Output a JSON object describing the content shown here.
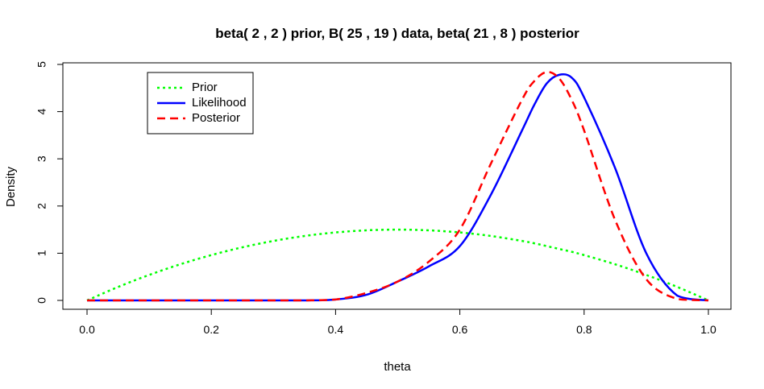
{
  "chart_data": {
    "type": "line",
    "title": "beta( 2 , 2 ) prior, B( 25 , 19 ) data, beta( 21 , 8 ) posterior",
    "xlabel": "theta",
    "ylabel": "Density",
    "xlim": [
      0,
      1
    ],
    "ylim": [
      0,
      5
    ],
    "x_ticks": [
      "0.0",
      "0.2",
      "0.4",
      "0.6",
      "0.8",
      "1.0"
    ],
    "y_ticks": [
      "0",
      "1",
      "2",
      "3",
      "4",
      "5"
    ],
    "grid": false,
    "legend_position": "top-left",
    "x": [
      0.0,
      0.05,
      0.1,
      0.15,
      0.2,
      0.25,
      0.3,
      0.35,
      0.4,
      0.45,
      0.5,
      0.55,
      0.6,
      0.65,
      0.7,
      0.72,
      0.74,
      0.76,
      0.78,
      0.8,
      0.85,
      0.9,
      0.95,
      1.0
    ],
    "series": [
      {
        "name": "Prior",
        "color": "#00ff00",
        "style": "dotted",
        "values": [
          0.0,
          0.285,
          0.54,
          0.765,
          0.96,
          1.125,
          1.26,
          1.365,
          1.44,
          1.485,
          1.5,
          1.485,
          1.44,
          1.365,
          1.26,
          1.21,
          1.15,
          1.09,
          1.03,
          0.96,
          0.765,
          0.54,
          0.285,
          0.0
        ]
      },
      {
        "name": "Likelihood",
        "color": "#0000ff",
        "style": "solid",
        "values": [
          0.0,
          0.0,
          0.0,
          0.0,
          0.0,
          0.0,
          0.0,
          0.0,
          0.02,
          0.12,
          0.4,
          0.72,
          1.15,
          2.24,
          3.6,
          4.15,
          4.6,
          4.78,
          4.72,
          4.3,
          2.8,
          1.0,
          0.1,
          0.0
        ]
      },
      {
        "name": "Posterior",
        "color": "#ff0000",
        "style": "dashed",
        "values": [
          0.0,
          0.0,
          0.0,
          0.0,
          0.0,
          0.0,
          0.0,
          0.0,
          0.02,
          0.16,
          0.4,
          0.82,
          1.5,
          2.9,
          4.25,
          4.65,
          4.84,
          4.7,
          4.25,
          3.6,
          1.7,
          0.45,
          0.03,
          0.0
        ]
      }
    ]
  }
}
